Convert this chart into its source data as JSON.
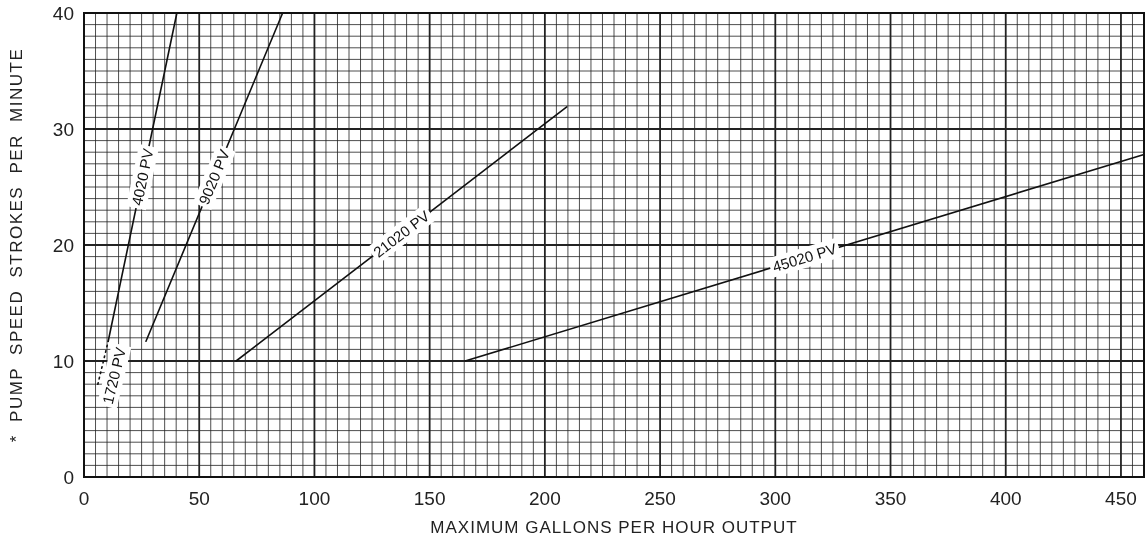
{
  "chart_data": {
    "type": "line",
    "xlabel": "MAXIMUM GALLONS PER HOUR OUTPUT",
    "ylabel": "* PUMP SPEED STROKES PER MINUTE",
    "xlim": [
      0,
      460
    ],
    "ylim": [
      0,
      40
    ],
    "xticks": [
      0,
      {
        "value": 5,
        "label": null
      },
      {
        "value": 10,
        "label": null
      },
      {
        "value": 15,
        "label": null
      },
      {
        "value": 20,
        "label": null
      },
      {
        "value": 25,
        "label": null
      },
      {
        "value": 30,
        "label": null
      },
      {
        "value": 35,
        "label": null
      },
      {
        "value": 40,
        "label": null
      },
      {
        "value": 45,
        "label": null
      },
      50,
      {
        "value": 55,
        "label": null
      },
      {
        "value": 60,
        "label": null
      },
      {
        "value": 65,
        "label": null
      },
      {
        "value": 70,
        "label": null
      },
      {
        "value": 75,
        "label": null
      },
      {
        "value": 80,
        "label": null
      },
      {
        "value": 85,
        "label": null
      },
      {
        "value": 90,
        "label": null
      },
      {
        "value": 95,
        "label": null
      },
      100,
      {
        "value": 105,
        "label": null
      },
      {
        "value": 110,
        "label": null
      },
      {
        "value": 115,
        "label": null
      },
      {
        "value": 120,
        "label": null
      },
      {
        "value": 125,
        "label": null
      },
      {
        "value": 130,
        "label": null
      },
      {
        "value": 135,
        "label": null
      },
      {
        "value": 140,
        "label": null
      },
      {
        "value": 145,
        "label": null
      },
      150,
      {
        "value": 155,
        "label": null
      },
      {
        "value": 160,
        "label": null
      },
      {
        "value": 165,
        "label": null
      },
      {
        "value": 170,
        "label": null
      },
      {
        "value": 175,
        "label": null
      },
      {
        "value": 180,
        "label": null
      },
      {
        "value": 185,
        "label": null
      },
      {
        "value": 190,
        "label": null
      },
      {
        "value": 195,
        "label": null
      },
      200,
      {
        "value": 205,
        "label": null
      },
      {
        "value": 210,
        "label": null
      },
      {
        "value": 215,
        "label": null
      },
      {
        "value": 220,
        "label": null
      },
      {
        "value": 225,
        "label": null
      },
      {
        "value": 230,
        "label": null
      },
      {
        "value": 235,
        "label": null
      },
      {
        "value": 240,
        "label": null
      },
      {
        "value": 245,
        "label": null
      },
      250,
      {
        "value": 255,
        "label": null
      },
      {
        "value": 260,
        "label": null
      },
      {
        "value": 265,
        "label": null
      },
      {
        "value": 270,
        "label": null
      },
      {
        "value": 275,
        "label": null
      },
      {
        "value": 280,
        "label": null
      },
      {
        "value": 285,
        "label": null
      },
      {
        "value": 290,
        "label": null
      },
      {
        "value": 295,
        "label": null
      },
      300,
      {
        "value": 305,
        "label": null
      },
      {
        "value": 310,
        "label": null
      },
      {
        "value": 315,
        "label": null
      },
      {
        "value": 320,
        "label": null
      },
      {
        "value": 325,
        "label": null
      },
      {
        "value": 330,
        "label": null
      },
      {
        "value": 335,
        "label": null
      },
      {
        "value": 340,
        "label": null
      },
      {
        "value": 345,
        "label": null
      },
      350,
      {
        "value": 355,
        "label": null
      },
      {
        "value": 360,
        "label": null
      },
      {
        "value": 365,
        "label": null
      },
      {
        "value": 370,
        "label": null
      },
      {
        "value": 375,
        "label": null
      },
      {
        "value": 380,
        "label": null
      },
      {
        "value": 385,
        "label": null
      },
      {
        "value": 390,
        "label": null
      },
      {
        "value": 395,
        "label": null
      },
      400,
      {
        "value": 405,
        "label": null
      },
      {
        "value": 410,
        "label": null
      },
      {
        "value": 415,
        "label": null
      },
      {
        "value": 420,
        "label": null
      },
      {
        "value": 425,
        "label": null
      },
      {
        "value": 430,
        "label": null
      },
      {
        "value": 435,
        "label": null
      },
      {
        "value": 440,
        "label": null
      },
      {
        "value": 445,
        "label": null
      },
      450,
      {
        "value": 455,
        "label": null
      },
      {
        "value": 460,
        "label": null
      }
    ],
    "yticks": [
      0,
      {
        "value": 1,
        "label": null
      },
      {
        "value": 2,
        "label": null
      },
      {
        "value": 3,
        "label": null
      },
      {
        "value": 4,
        "label": null
      },
      {
        "value": 5,
        "label": null
      },
      {
        "value": 6,
        "label": null
      },
      {
        "value": 7,
        "label": null
      },
      {
        "value": 8,
        "label": null
      },
      {
        "value": 9,
        "label": null
      },
      10,
      {
        "value": 11,
        "label": null
      },
      {
        "value": 12,
        "label": null
      },
      {
        "value": 13,
        "label": null
      },
      {
        "value": 14,
        "label": null
      },
      {
        "value": 15,
        "label": null
      },
      {
        "value": 16,
        "label": null
      },
      {
        "value": 17,
        "label": null
      },
      {
        "value": 18,
        "label": null
      },
      {
        "value": 19,
        "label": null
      },
      20,
      {
        "value": 21,
        "label": null
      },
      {
        "value": 22,
        "label": null
      },
      {
        "value": 23,
        "label": null
      },
      {
        "value": 24,
        "label": null
      },
      {
        "value": 25,
        "label": null
      },
      {
        "value": 26,
        "label": null
      },
      {
        "value": 27,
        "label": null
      },
      {
        "value": 28,
        "label": null
      },
      {
        "value": 29,
        "label": null
      },
      30,
      {
        "value": 31,
        "label": null
      },
      {
        "value": 32,
        "label": null
      },
      {
        "value": 33,
        "label": null
      },
      {
        "value": 34,
        "label": null
      },
      {
        "value": 35,
        "label": null
      },
      {
        "value": 36,
        "label": null
      },
      {
        "value": 37,
        "label": null
      },
      {
        "value": 38,
        "label": null
      },
      {
        "value": 39,
        "label": null
      },
      40
    ],
    "grid": true,
    "marker": "none",
    "series": [
      {
        "name": "1720 PV",
        "color": "#111111",
        "line_style": "dotted",
        "x": [
          6,
          10.5
        ],
        "values": [
          8,
          11.7
        ]
      },
      {
        "name": "4020 PV",
        "color": "#111111",
        "line_style": "solid",
        "x": [
          10.5,
          40.3
        ],
        "values": [
          11.7,
          40
        ]
      },
      {
        "name": "9020 PV",
        "color": "#111111",
        "line_style": "solid",
        "x": [
          26.9,
          86.2
        ],
        "values": [
          11.7,
          40
        ]
      },
      {
        "name": "21020 PV",
        "color": "#111111",
        "line_style": "solid",
        "x": [
          66,
          209.5
        ],
        "values": [
          10,
          31.9
        ]
      },
      {
        "name": "45020 PV",
        "color": "#111111",
        "line_style": "solid",
        "x": [
          165.4,
          460
        ],
        "values": [
          10,
          27.8
        ]
      }
    ]
  }
}
